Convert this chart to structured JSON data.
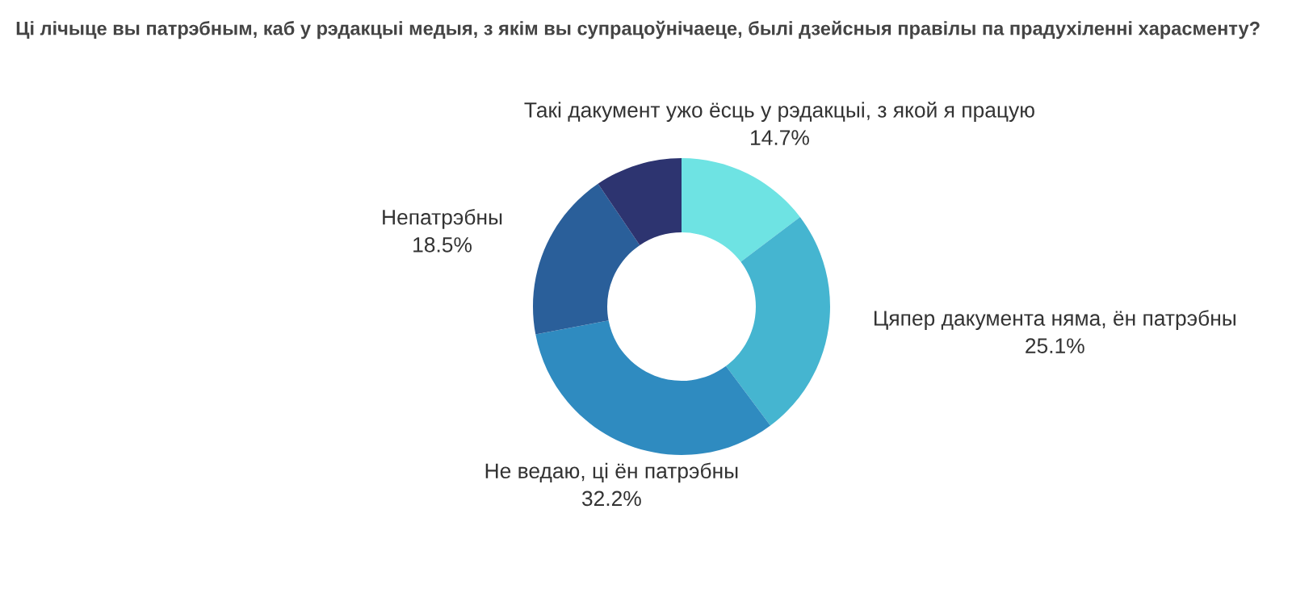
{
  "chart_data": {
    "type": "donut",
    "title": "Ці лічыце вы патрэбным, каб у рэдакцыі медыя, з якім вы супрацоўнічаеце, былі дзейсныя правілы па прадухіленні харасменту?",
    "categories": [
      "Такі дакумент ужо ёсць у рэдакцыі, з якой я працую",
      "Цяпер дакумента няма, ён патрэбны",
      "Не ведаю, ці ён патрэбны",
      "Непатрэбны",
      null
    ],
    "values": [
      14.7,
      25.1,
      32.2,
      18.5,
      9.5
    ],
    "value_labels": [
      "14.7%",
      "25.1%",
      "32.2%",
      "18.5%",
      null
    ],
    "colors": [
      "#6ee3e3",
      "#45b5d0",
      "#2f8bc0",
      "#2a5f9a",
      "#2d3470"
    ],
    "legend": false
  }
}
